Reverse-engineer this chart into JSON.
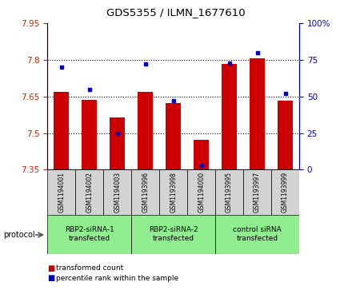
{
  "title": "GDS5355 / ILMN_1677610",
  "samples": [
    "GSM1194001",
    "GSM1194002",
    "GSM1194003",
    "GSM1193996",
    "GSM1193998",
    "GSM1194000",
    "GSM1193995",
    "GSM1193997",
    "GSM1193999"
  ],
  "red_values": [
    7.67,
    7.635,
    7.565,
    7.67,
    7.622,
    7.472,
    7.782,
    7.805,
    7.632
  ],
  "blue_values": [
    70,
    55,
    25,
    72,
    47,
    3,
    73,
    80,
    52
  ],
  "ymin": 7.35,
  "ymax": 7.95,
  "yticks": [
    7.35,
    7.5,
    7.65,
    7.8,
    7.95
  ],
  "y2min": 0,
  "y2max": 100,
  "y2ticks": [
    0,
    25,
    50,
    75,
    100
  ],
  "bar_color": "#CC0000",
  "dot_color": "#0000CC",
  "bar_width": 0.55,
  "plot_bg": "#FFFFFF",
  "tick_color_left": "#CC2200",
  "tick_color_right": "#0000CC",
  "group_labels": [
    "RBP2-siRNA-1\ntransfected",
    "RBP2-siRNA-2\ntransfected",
    "control siRNA\ntransfected"
  ],
  "group_boundaries": [
    0,
    3,
    6,
    9
  ],
  "group_color": "#90EE90",
  "sample_bg": "#D3D3D3",
  "legend_items": [
    {
      "color": "#CC0000",
      "label": "transformed count"
    },
    {
      "color": "#0000CC",
      "label": "percentile rank within the sample"
    }
  ]
}
